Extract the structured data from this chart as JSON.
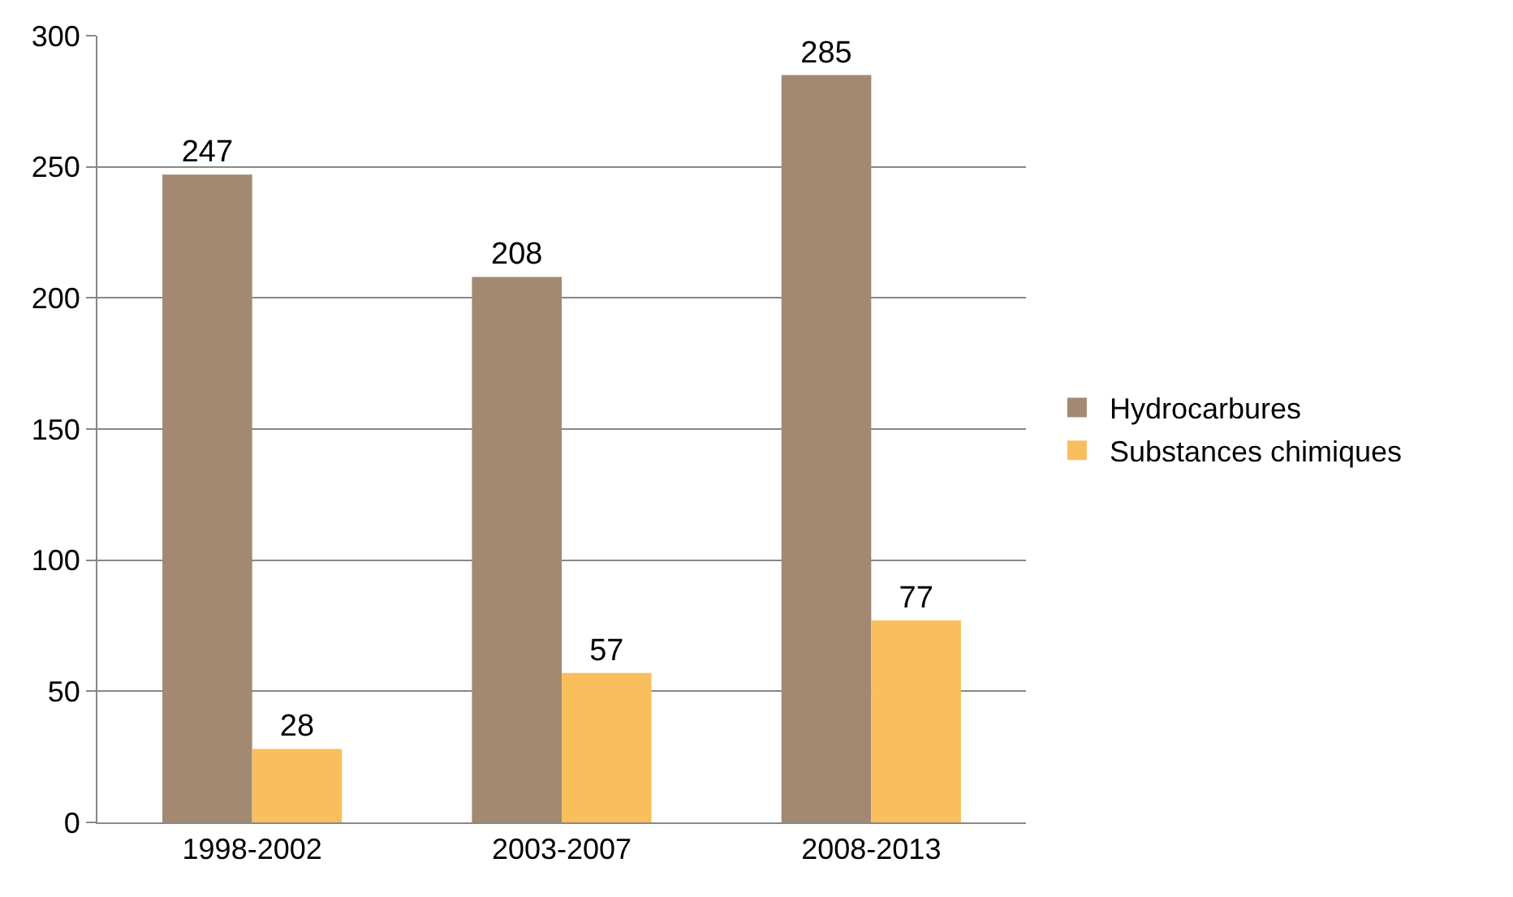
{
  "chart_data": {
    "type": "bar",
    "categories": [
      "1998-2002",
      "2003-2007",
      "2008-2013"
    ],
    "series": [
      {
        "name": "Hydrocarbures",
        "color": "#a38872",
        "values": [
          247,
          208,
          285
        ]
      },
      {
        "name": "Substances chimiques",
        "color": "#f9bf5d",
        "values": [
          28,
          57,
          77
        ]
      }
    ],
    "ylim": [
      0,
      300
    ],
    "yticks": [
      0,
      50,
      100,
      150,
      200,
      250,
      300
    ],
    "grid": "y",
    "legend": "right",
    "data_labels": true
  }
}
